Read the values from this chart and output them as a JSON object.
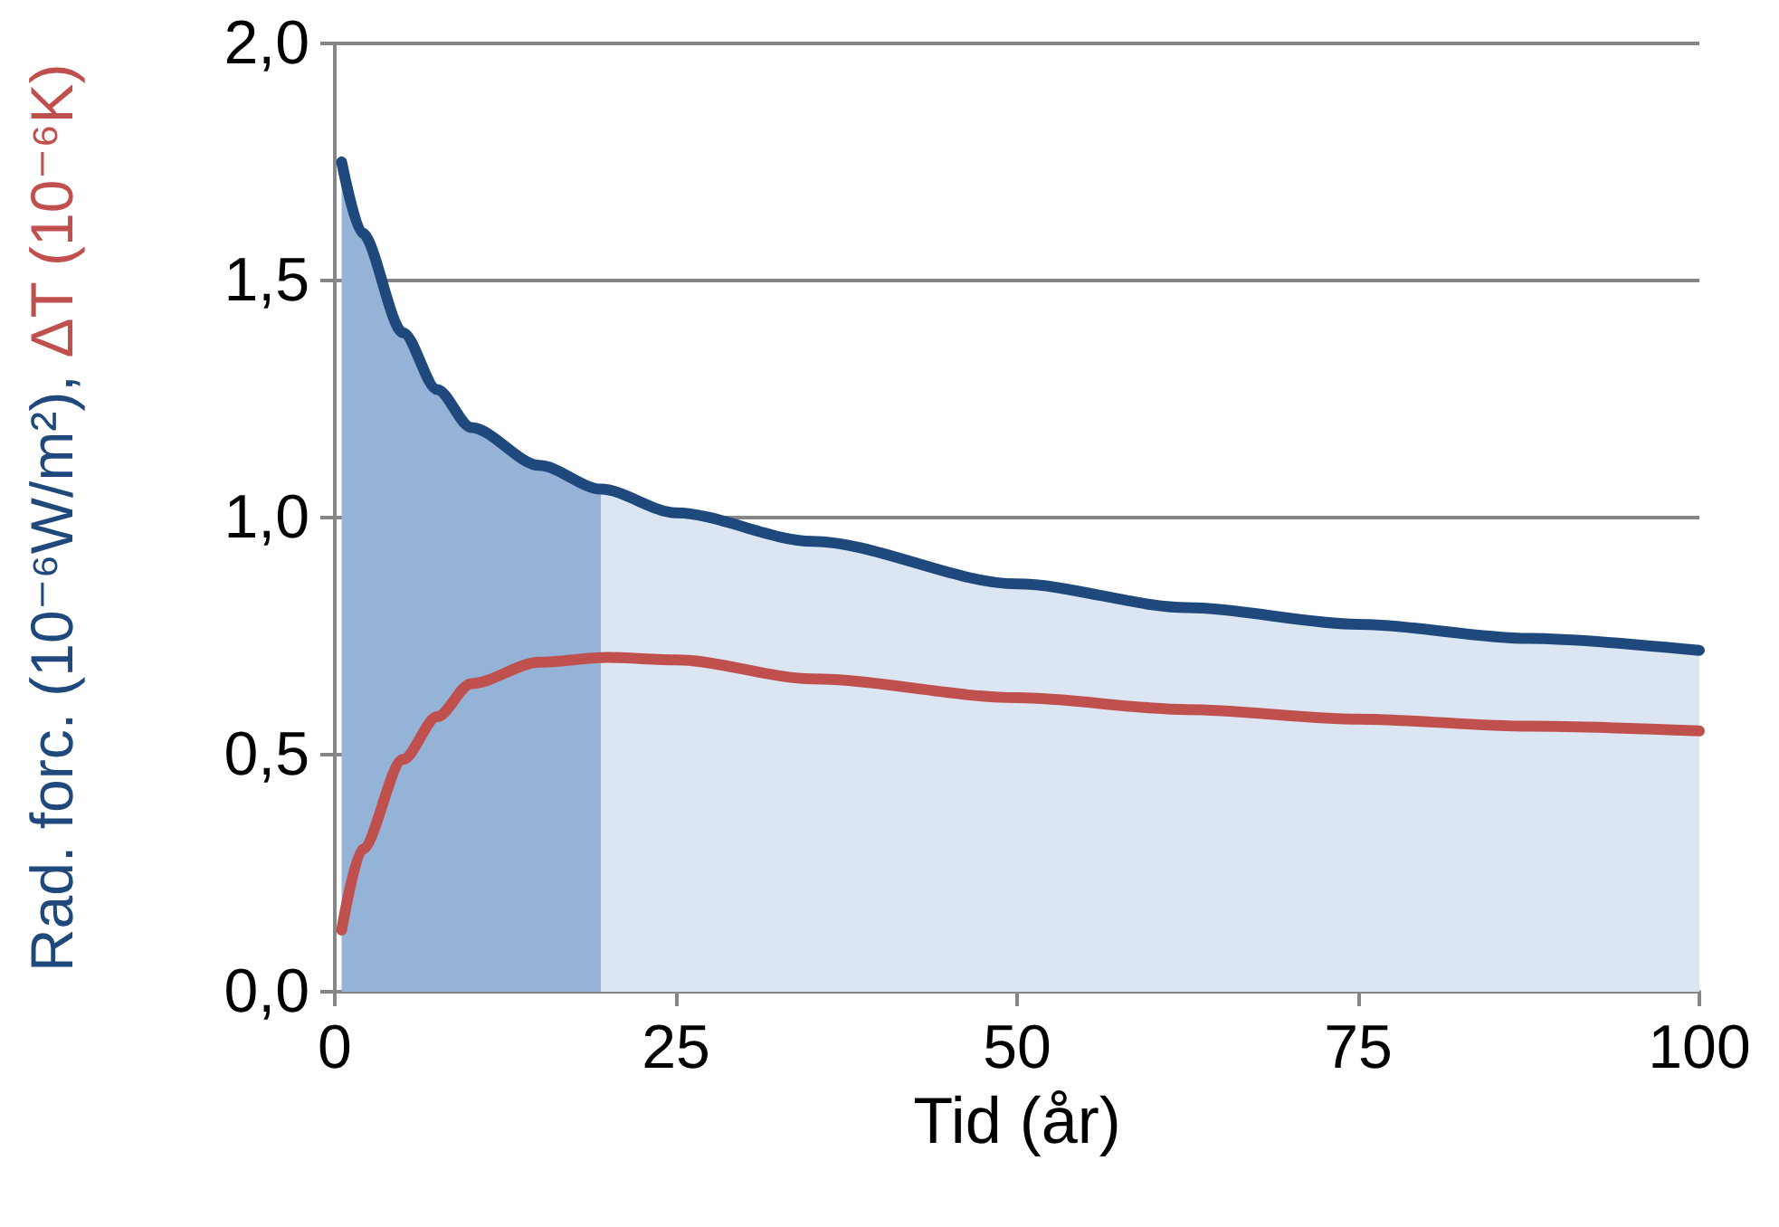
{
  "chart_data": {
    "type": "line",
    "xlabel": "Tid (år)",
    "ylabel": "Rad. forc. (10⁻⁶W/m²), ΔT (10⁻⁶K)",
    "xlim": [
      0,
      100
    ],
    "xticks": [
      0,
      25,
      50,
      75,
      100
    ],
    "ylim": [
      0,
      2
    ],
    "yticks": [
      {
        "value": 0,
        "label": "0,0"
      },
      {
        "value": 0.5,
        "label": "0,5"
      },
      {
        "value": 1,
        "label": "1,0"
      },
      {
        "value": 1.5,
        "label": "1,5"
      },
      {
        "value": 2,
        "label": "2,0"
      }
    ],
    "grid": "y",
    "marker": "none",
    "series": [
      {
        "type": "area",
        "color": "#95b3d7",
        "x": [
          0.5,
          2,
          5,
          7.5,
          10,
          15,
          19.5
        ],
        "values": [
          1.75,
          1.6,
          1.39,
          1.27,
          1.19,
          1.11,
          1.06
        ]
      },
      {
        "type": "area",
        "color": "#dce6f2",
        "x": [
          19.5,
          25,
          35,
          50,
          62.5,
          75,
          87.5,
          100
        ],
        "values": [
          1.06,
          1.01,
          0.95,
          0.86,
          0.81,
          0.775,
          0.745,
          0.72
        ]
      },
      {
        "color": "#1f497d",
        "x": [
          0.5,
          2,
          5,
          7.5,
          10,
          15,
          19.5,
          25,
          35,
          50,
          62.5,
          75,
          87.5,
          100
        ],
        "values": [
          1.75,
          1.6,
          1.39,
          1.27,
          1.19,
          1.11,
          1.06,
          1.01,
          0.95,
          0.86,
          0.81,
          0.775,
          0.745,
          0.72
        ]
      },
      {
        "color": "#c0504d",
        "x": [
          0.5,
          2,
          5,
          7.5,
          10,
          15,
          20,
          25,
          35,
          50,
          62.5,
          75,
          87.5,
          100
        ],
        "values": [
          0.13,
          0.3,
          0.49,
          0.58,
          0.65,
          0.695,
          0.705,
          0.7,
          0.66,
          0.62,
          0.595,
          0.575,
          0.56,
          0.55
        ]
      }
    ]
  }
}
